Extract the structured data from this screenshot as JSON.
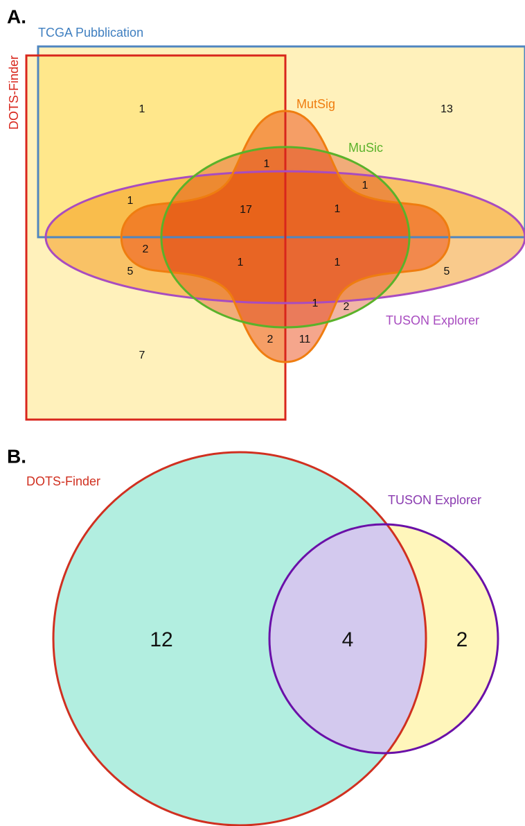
{
  "panel_a": {
    "label": "A.",
    "sets": [
      "TCGA Pubblication",
      "DOTS-Finder",
      "MutSig",
      "MuSic",
      "TUSON Explorer"
    ],
    "regions": [
      1,
      13,
      1,
      1,
      1,
      17,
      1,
      2,
      5,
      1,
      1,
      5,
      1,
      2,
      2,
      11,
      7
    ]
  },
  "panel_b": {
    "label": "B.",
    "sets": [
      "DOTS-Finder",
      "TUSON Explorer"
    ],
    "regions": [
      12,
      4,
      2
    ]
  }
}
